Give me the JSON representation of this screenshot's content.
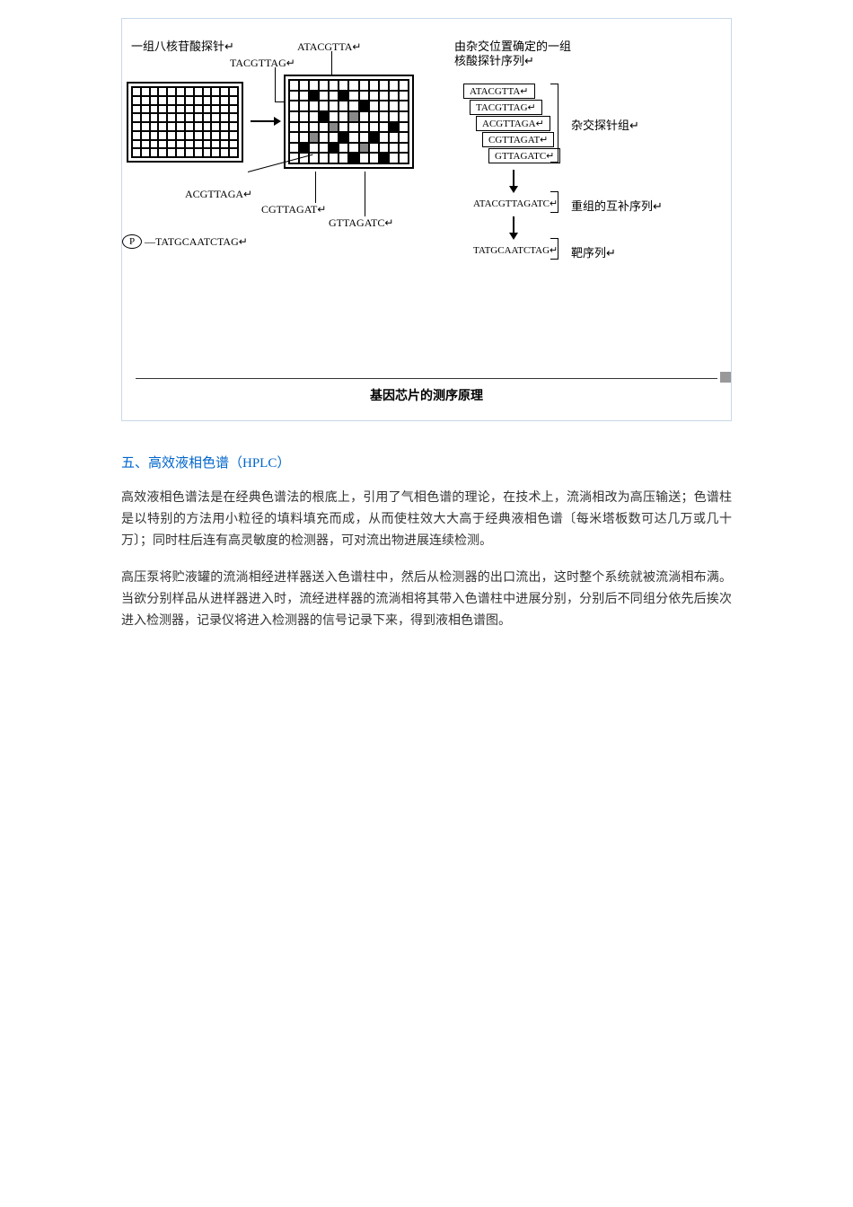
{
  "diagram": {
    "top_label_left": "一组八核苷酸探针↵",
    "top_label_right_1": "由杂交位置确定的一组",
    "top_label_right_2": "核酸探针序列↵",
    "seq_atacgtta": "ATACGTTA↵",
    "seq_tacgttag": "TACGTTAG↵",
    "seq_acgttaga": "ACGTTAGA↵",
    "seq_cgttagat": "CGTTAGAT↵",
    "seq_gttagatc": "GTTAGATC↵",
    "right_group_label": "杂交探针组↵",
    "complement_seq": "ATACGTTAGATC↵",
    "complement_label": "重组的互补序列↵",
    "target_seq": "TATGCAATCTAG↵",
    "target_label": "靶序列↵",
    "p_label": "P",
    "p_tail": "—TATGCAATCTAG↵",
    "grid2_filled": {
      "black": [
        [
          1,
          2
        ],
        [
          1,
          5
        ],
        [
          2,
          7
        ],
        [
          3,
          3
        ],
        [
          4,
          10
        ],
        [
          5,
          5
        ],
        [
          5,
          8
        ],
        [
          6,
          1
        ],
        [
          6,
          4
        ],
        [
          7,
          6
        ],
        [
          7,
          9
        ]
      ],
      "gray": [
        [
          3,
          6
        ],
        [
          4,
          4
        ],
        [
          5,
          2
        ],
        [
          6,
          7
        ]
      ]
    },
    "caption": "基因芯片的测序原理"
  },
  "section": {
    "heading": "五、高效液相色谱（HPLC）",
    "para1": "高效液相色谱法是在经典色谱法的根底上，引用了气相色谱的理论，在技术上，流淌相改为高压输送；色谱柱是以特别的方法用小粒径的填料填充而成，从而使柱效大大高于经典液相色谱〔每米塔板数可达几万或几十万〕；同时柱后连有高灵敏度的检测器，可对流出物进展连续检测。",
    "para2": "高压泵将贮液罐的流淌相经进样器送入色谱柱中，然后从检测器的出口流出，这时整个系统就被流淌相布满。当欲分别样品从进样器进入时，流经进样器的流淌相将其带入色谱柱中进展分别，分别后不同组分依先后挨次进入检测器，记录仪将进入检测器的信号记录下来，得到液相色谱图。"
  }
}
